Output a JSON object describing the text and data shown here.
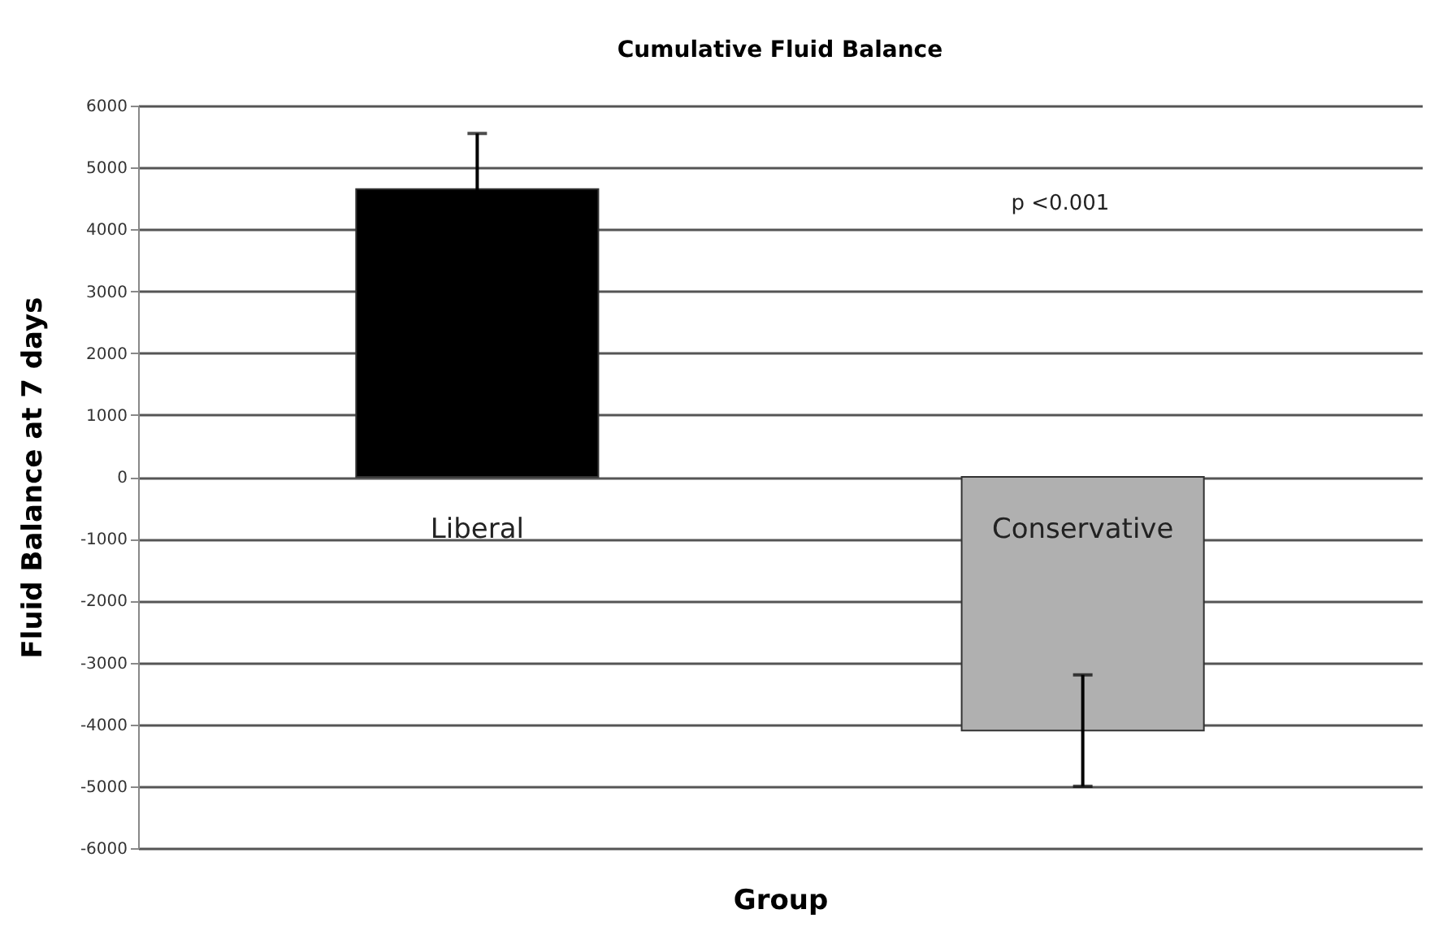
{
  "chart_data": {
    "type": "bar",
    "title": "Cumulative Fluid Balance",
    "xlabel": "Group",
    "ylabel": "Fluid Balance at 7 days",
    "categories": [
      "Liberal",
      "Conservative"
    ],
    "values": [
      4650,
      -4100
    ],
    "colors": [
      "#000000",
      "#b0b0b0"
    ],
    "errors": [
      900,
      900
    ],
    "ylim": [
      -6000,
      6000
    ],
    "yticks": [
      -6000,
      -5000,
      -4000,
      -3000,
      -2000,
      -1000,
      0,
      1000,
      2000,
      3000,
      4000,
      5000,
      6000
    ],
    "grid": "y",
    "annotations": [
      "p <0.001"
    ]
  }
}
